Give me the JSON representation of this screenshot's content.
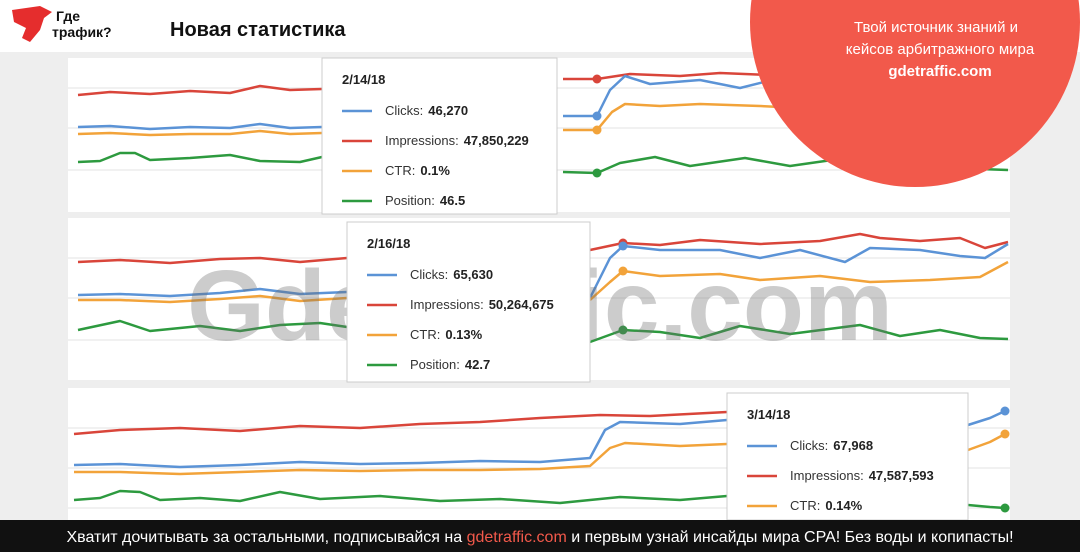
{
  "header": {
    "logo": [
      "Где",
      "трафик?"
    ],
    "title": "Новая статистика",
    "promo": [
      "Твой источник знаний и",
      "кейсов арбитражного мира",
      "gdetraffic.com"
    ]
  },
  "tooltips": [
    {
      "date": "2/14/18",
      "rows": [
        {
          "label": "Clicks:",
          "value": "46,270"
        },
        {
          "label": "Impressions:",
          "value": "47,850,229"
        },
        {
          "label": "CTR:",
          "value": "0.1%"
        },
        {
          "label": "Position:",
          "value": "46.5"
        }
      ]
    },
    {
      "date": "2/16/18",
      "rows": [
        {
          "label": "Clicks:",
          "value": "65,630"
        },
        {
          "label": "Impressions:",
          "value": "50,264,675"
        },
        {
          "label": "CTR:",
          "value": "0.13%"
        },
        {
          "label": "Position:",
          "value": "42.7"
        }
      ]
    },
    {
      "date": "3/14/18",
      "rows": [
        {
          "label": "Clicks:",
          "value": "67,968"
        },
        {
          "label": "Impressions:",
          "value": "47,587,593"
        },
        {
          "label": "CTR:",
          "value": "0.14%"
        }
      ]
    }
  ],
  "watermark": "Gdetraffic.com",
  "footer": {
    "before": "Хватит дочитывать за остальными, подписывайся на",
    "link": "gdetraffic.com",
    "after": "и первым узнай инсайды мира CPA! Без воды и копипасты!"
  }
}
